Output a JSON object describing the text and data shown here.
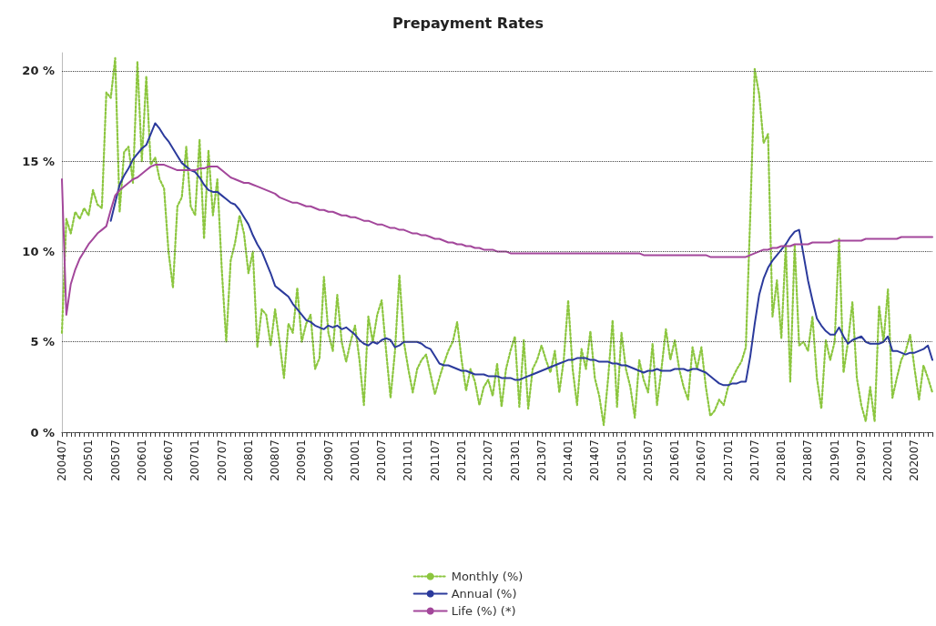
{
  "chart_data": {
    "type": "line",
    "title": "Prepayment Rates",
    "categories": [
      "200407",
      null,
      null,
      null,
      null,
      null,
      "200501",
      null,
      null,
      null,
      null,
      null,
      "200507",
      null,
      null,
      null,
      null,
      null,
      "200601",
      null,
      null,
      null,
      null,
      null,
      "200607",
      null,
      null,
      null,
      null,
      null,
      "200701",
      null,
      null,
      null,
      null,
      null,
      "200707",
      null,
      null,
      null,
      null,
      null,
      "200801",
      null,
      null,
      null,
      null,
      null,
      "200807",
      null,
      null,
      null,
      null,
      null,
      "200901",
      null,
      null,
      null,
      null,
      null,
      "200907",
      null,
      null,
      null,
      null,
      null,
      "201001",
      null,
      null,
      null,
      null,
      null,
      "201007",
      null,
      null,
      null,
      null,
      null,
      "201101",
      null,
      null,
      null,
      null,
      null,
      "201107",
      null,
      null,
      null,
      null,
      null,
      "201201",
      null,
      null,
      null,
      null,
      null,
      "201207",
      null,
      null,
      null,
      null,
      null,
      "201301",
      null,
      null,
      null,
      null,
      null,
      "201307",
      null,
      null,
      null,
      null,
      null,
      "201401",
      null,
      null,
      null,
      null,
      null,
      "201407",
      null,
      null,
      null,
      null,
      null,
      "201501",
      null,
      null,
      null,
      null,
      null,
      "201507",
      null,
      null,
      null,
      null,
      null,
      "201601",
      null,
      null,
      null,
      null,
      null,
      "201607",
      null,
      null,
      null,
      null,
      null,
      "201701",
      null,
      null,
      null,
      null,
      null,
      "201707",
      null,
      null,
      null,
      null,
      null,
      "201801",
      null,
      null,
      null,
      null,
      null,
      "201807",
      null,
      null,
      null,
      null,
      null,
      "201901",
      null,
      null,
      null,
      null,
      null,
      "201907",
      null,
      null,
      null,
      null,
      null,
      "202001",
      null,
      null,
      null,
      null,
      null,
      "202007",
      null,
      null,
      null,
      null
    ],
    "series": [
      {
        "name": "Monthly (%)",
        "color": "#8cc63f",
        "line_style": "dotted",
        "values": [
          5.5,
          11.8,
          11.0,
          12.2,
          11.8,
          12.4,
          12.0,
          13.4,
          12.6,
          12.4,
          18.8,
          18.5,
          20.7,
          12.2,
          15.5,
          15.8,
          13.8,
          20.5,
          15.0,
          19.7,
          14.8,
          15.2,
          14.0,
          13.5,
          10.0,
          8.0,
          12.5,
          13.0,
          15.8,
          12.5,
          12.0,
          16.2,
          10.7,
          15.6,
          12.0,
          14.0,
          9.0,
          5.0,
          9.5,
          10.5,
          12.0,
          11.0,
          8.8,
          10.0,
          4.7,
          6.8,
          6.5,
          4.8,
          6.8,
          5.0,
          3.0,
          6.0,
          5.5,
          8.0,
          5.0,
          6.0,
          6.5,
          3.5,
          4.1,
          8.6,
          5.5,
          4.5,
          7.6,
          5.0,
          3.9,
          5.0,
          5.9,
          4.0,
          1.5,
          6.4,
          5.0,
          6.5,
          7.3,
          4.5,
          1.9,
          4.5,
          8.7,
          5.0,
          3.5,
          2.2,
          3.5,
          4.0,
          4.3,
          3.2,
          2.1,
          3.0,
          3.8,
          4.5,
          5.0,
          6.1,
          4.0,
          2.3,
          3.5,
          2.8,
          1.5,
          2.5,
          2.9,
          2.0,
          3.8,
          1.4,
          3.5,
          4.5,
          5.3,
          1.4,
          5.1,
          1.3,
          3.5,
          4.0,
          4.8,
          4.0,
          3.3,
          4.5,
          2.2,
          4.0,
          7.3,
          3.5,
          1.5,
          4.6,
          3.5,
          5.6,
          3.0,
          2.0,
          0.4,
          3.0,
          6.2,
          1.4,
          5.5,
          3.5,
          2.5,
          0.8,
          4.0,
          2.9,
          2.2,
          4.9,
          1.5,
          3.5,
          5.7,
          4.0,
          5.1,
          3.5,
          2.5,
          1.8,
          4.7,
          3.5,
          4.7,
          2.5,
          0.9,
          1.2,
          1.8,
          1.5,
          2.5,
          3.0,
          3.5,
          3.9,
          4.7,
          12.0,
          20.1,
          18.7,
          16.0,
          16.5,
          6.4,
          8.4,
          5.2,
          10.4,
          2.8,
          10.4,
          4.8,
          5.0,
          4.5,
          6.4,
          3.0,
          1.3,
          5.1,
          4.0,
          5.0,
          10.7,
          3.3,
          5.0,
          7.2,
          3.0,
          1.5,
          0.6,
          2.5,
          0.6,
          7.0,
          5.0,
          7.9,
          1.9,
          3.0,
          4.0,
          4.5,
          5.4,
          3.5,
          1.8,
          3.7,
          3.0,
          2.2
        ]
      },
      {
        "name": "Annual (%)",
        "color": "#2b3a9c",
        "line_style": "solid",
        "values": [
          null,
          null,
          null,
          null,
          null,
          null,
          null,
          null,
          null,
          null,
          null,
          11.7,
          12.7,
          13.7,
          14.2,
          14.6,
          15.1,
          15.4,
          15.7,
          15.9,
          16.5,
          17.1,
          16.8,
          16.4,
          16.1,
          15.7,
          15.3,
          14.9,
          14.7,
          14.5,
          14.4,
          14.1,
          13.7,
          13.4,
          13.3,
          13.3,
          13.1,
          12.9,
          12.7,
          12.6,
          12.3,
          11.9,
          11.5,
          10.9,
          10.4,
          10.0,
          9.4,
          8.8,
          8.1,
          7.9,
          7.7,
          7.5,
          7.1,
          6.8,
          6.5,
          6.2,
          6.1,
          5.9,
          5.8,
          5.7,
          5.9,
          5.8,
          5.9,
          5.7,
          5.8,
          5.6,
          5.4,
          5.1,
          4.9,
          4.8,
          5.0,
          4.9,
          5.1,
          5.2,
          5.1,
          4.7,
          4.8,
          5.0,
          5.0,
          5.0,
          5.0,
          4.9,
          4.7,
          4.6,
          4.2,
          3.8,
          3.7,
          3.7,
          3.6,
          3.5,
          3.4,
          3.4,
          3.3,
          3.2,
          3.2,
          3.2,
          3.1,
          3.1,
          3.1,
          3.0,
          3.0,
          3.0,
          2.9,
          2.9,
          3.0,
          3.1,
          3.2,
          3.3,
          3.4,
          3.5,
          3.6,
          3.7,
          3.8,
          3.9,
          4.0,
          4.0,
          4.1,
          4.1,
          4.1,
          4.0,
          4.0,
          3.9,
          3.9,
          3.9,
          3.8,
          3.8,
          3.7,
          3.7,
          3.6,
          3.5,
          3.4,
          3.3,
          3.4,
          3.4,
          3.5,
          3.4,
          3.4,
          3.4,
          3.5,
          3.5,
          3.5,
          3.4,
          3.5,
          3.5,
          3.4,
          3.3,
          3.1,
          2.9,
          2.7,
          2.6,
          2.6,
          2.7,
          2.7,
          2.8,
          2.8,
          4.2,
          6.0,
          7.6,
          8.5,
          9.1,
          9.5,
          9.8,
          10.1,
          10.4,
          10.8,
          11.1,
          11.2,
          9.8,
          8.4,
          7.3,
          6.3,
          5.9,
          5.6,
          5.4,
          5.4,
          5.8,
          5.3,
          4.9,
          5.1,
          5.2,
          5.3,
          5.0,
          4.9,
          4.9,
          4.9,
          5.0,
          5.3,
          4.5,
          4.5,
          4.4,
          4.3,
          4.4,
          4.4,
          4.5,
          4.6,
          4.8,
          4.0
        ]
      },
      {
        "name": "Life (%) (*)",
        "color": "#a3479b",
        "line_style": "solid",
        "values": [
          14.0,
          6.5,
          8.2,
          9.0,
          9.6,
          10.0,
          10.4,
          10.7,
          11.0,
          11.2,
          11.4,
          12.3,
          13.1,
          13.4,
          13.6,
          13.8,
          14.0,
          14.1,
          14.3,
          14.5,
          14.7,
          14.8,
          14.8,
          14.8,
          14.7,
          14.6,
          14.5,
          14.5,
          14.5,
          14.5,
          14.5,
          14.6,
          14.6,
          14.7,
          14.7,
          14.7,
          14.5,
          14.3,
          14.1,
          14.0,
          13.9,
          13.8,
          13.8,
          13.7,
          13.6,
          13.5,
          13.4,
          13.3,
          13.2,
          13.0,
          12.9,
          12.8,
          12.7,
          12.7,
          12.6,
          12.5,
          12.5,
          12.4,
          12.3,
          12.3,
          12.2,
          12.2,
          12.1,
          12.0,
          12.0,
          11.9,
          11.9,
          11.8,
          11.7,
          11.7,
          11.6,
          11.5,
          11.5,
          11.4,
          11.3,
          11.3,
          11.2,
          11.2,
          11.1,
          11.0,
          11.0,
          10.9,
          10.9,
          10.8,
          10.7,
          10.7,
          10.6,
          10.5,
          10.5,
          10.4,
          10.4,
          10.3,
          10.3,
          10.2,
          10.2,
          10.1,
          10.1,
          10.1,
          10.0,
          10.0,
          10.0,
          9.9,
          9.9,
          9.9,
          9.9,
          9.9,
          9.9,
          9.9,
          9.9,
          9.9,
          9.9,
          9.9,
          9.9,
          9.9,
          9.9,
          9.9,
          9.9,
          9.9,
          9.9,
          9.9,
          9.9,
          9.9,
          9.9,
          9.9,
          9.9,
          9.9,
          9.9,
          9.9,
          9.9,
          9.9,
          9.9,
          9.8,
          9.8,
          9.8,
          9.8,
          9.8,
          9.8,
          9.8,
          9.8,
          9.8,
          9.8,
          9.8,
          9.8,
          9.8,
          9.8,
          9.8,
          9.7,
          9.7,
          9.7,
          9.7,
          9.7,
          9.7,
          9.7,
          9.7,
          9.7,
          9.8,
          9.9,
          10.0,
          10.1,
          10.1,
          10.2,
          10.2,
          10.3,
          10.3,
          10.3,
          10.4,
          10.4,
          10.4,
          10.4,
          10.5,
          10.5,
          10.5,
          10.5,
          10.5,
          10.6,
          10.6,
          10.6,
          10.6,
          10.6,
          10.6,
          10.6,
          10.7,
          10.7,
          10.7,
          10.7,
          10.7,
          10.7,
          10.7,
          10.7,
          10.8,
          10.8,
          10.8,
          10.8,
          10.8,
          10.8,
          10.8,
          10.8
        ]
      }
    ],
    "ylim": [
      0,
      21
    ],
    "yticks": [
      {
        "value": 0,
        "label": "0 %"
      },
      {
        "value": 5,
        "label": "5 %"
      },
      {
        "value": 10,
        "label": "10 %"
      },
      {
        "value": 15,
        "label": "15 %"
      },
      {
        "value": 20,
        "label": "20 %"
      }
    ],
    "grid": "y",
    "legend": "bottom",
    "marker": "none"
  }
}
